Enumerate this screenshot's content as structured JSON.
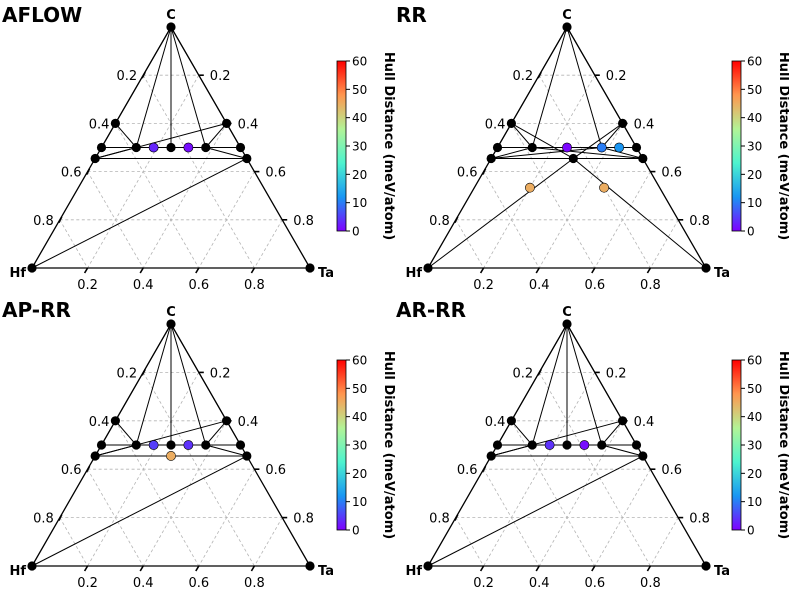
{
  "colorbar": {
    "label": "Hull Distance (meV/atom)",
    "ticks": [
      "0",
      "10",
      "20",
      "30",
      "40",
      "50",
      "60"
    ],
    "range": [
      0,
      60
    ],
    "colormap": [
      "#8000ff",
      "#1996f3",
      "#4df3ce",
      "#b2f396",
      "#ff964f",
      "#ff0000"
    ]
  },
  "stable_color": "#000000",
  "chart_data": [
    {
      "type": "ternary",
      "title": "AFLOW",
      "vertices": {
        "top": "C",
        "left": "Hf",
        "right": "Ta"
      },
      "tick_labels": [
        "0.2",
        "0.4",
        "0.6",
        "0.8"
      ],
      "stable_points": [
        [
          1,
          0,
          0
        ],
        [
          0,
          1,
          0
        ],
        [
          0,
          0,
          1
        ],
        [
          0.5,
          0.5,
          0
        ],
        [
          0.5,
          0,
          0.5
        ],
        [
          0.5,
          0.375,
          0.125
        ],
        [
          0.5,
          0.125,
          0.375
        ],
        [
          0.5,
          0.25,
          0.25
        ],
        [
          0.4545,
          0.5455,
          0
        ],
        [
          0.4545,
          0,
          0.5455
        ],
        [
          0.6,
          0.4,
          0
        ],
        [
          0.6,
          0,
          0.4
        ]
      ],
      "unstable_points": [
        {
          "c": 0.5,
          "hf": 0.3125,
          "ta": 0.1875,
          "hull": 3
        },
        {
          "c": 0.5,
          "hf": 0.1875,
          "ta": 0.3125,
          "hull": 1
        }
      ],
      "tie_lines": [
        [
          [
            1,
            0,
            0
          ],
          [
            0.5,
            0.5,
            0
          ]
        ],
        [
          [
            1,
            0,
            0
          ],
          [
            0.5,
            0,
            0.5
          ]
        ],
        [
          [
            1,
            0,
            0
          ],
          [
            0.5,
            0.375,
            0.125
          ]
        ],
        [
          [
            1,
            0,
            0
          ],
          [
            0.5,
            0.125,
            0.375
          ]
        ],
        [
          [
            1,
            0,
            0
          ],
          [
            0.5,
            0.25,
            0.25
          ]
        ],
        [
          [
            0.5,
            0.5,
            0
          ],
          [
            0.5,
            0,
            0.5
          ]
        ],
        [
          [
            0.5,
            0.375,
            0.125
          ],
          [
            0.6,
            0.4,
            0
          ]
        ],
        [
          [
            0.5,
            0.375,
            0.125
          ],
          [
            0.4545,
            0.5455,
            0
          ]
        ],
        [
          [
            0.5,
            0.125,
            0.375
          ],
          [
            0.6,
            0,
            0.4
          ]
        ],
        [
          [
            0.5,
            0.125,
            0.375
          ],
          [
            0.4545,
            0,
            0.5455
          ]
        ],
        [
          [
            0.4545,
            0.5455,
            0
          ],
          [
            0.4545,
            0,
            0.5455
          ]
        ],
        [
          [
            0.4545,
            0.5455,
            0
          ],
          [
            0.6,
            0,
            0.4
          ]
        ],
        [
          [
            0,
            1,
            0
          ],
          [
            0.4545,
            0,
            0.5455
          ]
        ]
      ]
    },
    {
      "type": "ternary",
      "title": "RR",
      "vertices": {
        "top": "C",
        "left": "Hf",
        "right": "Ta"
      },
      "tick_labels": [
        "0.2",
        "0.4",
        "0.6",
        "0.8"
      ],
      "stable_points": [
        [
          1,
          0,
          0
        ],
        [
          0,
          1,
          0
        ],
        [
          0,
          0,
          1
        ],
        [
          0.5,
          0.5,
          0
        ],
        [
          0.5,
          0,
          0.5
        ],
        [
          0.5,
          0.375,
          0.125
        ],
        [
          0.5,
          0.125,
          0.375
        ],
        [
          0.5,
          0.25,
          0.25
        ],
        [
          0.4545,
          0.5455,
          0
        ],
        [
          0.4545,
          0,
          0.5455
        ],
        [
          0.6,
          0.4,
          0
        ],
        [
          0.6,
          0,
          0.4
        ]
      ],
      "unstable_points": [
        {
          "c": 0.5,
          "hf": 0.25,
          "ta": 0.25,
          "hull": 0.5
        },
        {
          "c": 0.5,
          "hf": 0.125,
          "ta": 0.375,
          "hull": 10
        },
        {
          "c": 0.5,
          "hf": 0.0625,
          "ta": 0.4375,
          "hull": 12
        },
        {
          "c": 0.3333,
          "hf": 0.4667,
          "ta": 0.2,
          "hull": 45
        },
        {
          "c": 0.3333,
          "hf": 0.2,
          "ta": 0.4667,
          "hull": 45
        }
      ],
      "tie_lines": [
        [
          [
            1,
            0,
            0
          ],
          [
            0.4545,
            0.5455,
            0
          ]
        ],
        [
          [
            1,
            0,
            0
          ],
          [
            0.4545,
            0,
            0.5455
          ]
        ],
        [
          [
            1,
            0,
            0
          ],
          [
            0.5,
            0.375,
            0.125
          ]
        ],
        [
          [
            1,
            0,
            0
          ],
          [
            0.5,
            0.125,
            0.375
          ]
        ],
        [
          [
            0.4545,
            0.5455,
            0
          ],
          [
            0.4545,
            0,
            0.5455
          ]
        ],
        [
          [
            0.5,
            0.5,
            0
          ],
          [
            0.5,
            0,
            0.5
          ]
        ],
        [
          [
            0.6,
            0.4,
            0
          ],
          [
            0.5,
            0.375,
            0.125
          ]
        ],
        [
          [
            0.6,
            0,
            0.4
          ],
          [
            0.5,
            0.125,
            0.375
          ]
        ],
        [
          [
            0.4545,
            0.5455,
            0
          ],
          [
            0.5,
            0.375,
            0.125
          ]
        ],
        [
          [
            0.4545,
            0,
            0.5455
          ],
          [
            0.5,
            0.125,
            0.375
          ]
        ],
        [
          [
            0.5,
            0.375,
            0.125
          ],
          [
            0.4545,
            0,
            0.5455
          ]
        ],
        [
          [
            0.5,
            0.125,
            0.375
          ],
          [
            0.4545,
            0.5455,
            0
          ]
        ],
        [
          [
            0.4545,
            0.25,
            0.2955
          ],
          [
            0,
            1,
            0
          ]
        ],
        [
          [
            0.4545,
            0.25,
            0.2955
          ],
          [
            0,
            0,
            1
          ]
        ],
        [
          [
            0.6,
            0.4,
            0
          ],
          [
            0.4545,
            0.25,
            0.2955
          ]
        ],
        [
          [
            0.6,
            0,
            0.4
          ],
          [
            0.4545,
            0.25,
            0.2955
          ]
        ]
      ],
      "extra_stable": [
        [
          0.4545,
          0.25,
          0.2955
        ]
      ]
    },
    {
      "type": "ternary",
      "title": "AP-RR",
      "vertices": {
        "top": "C",
        "left": "Hf",
        "right": "Ta"
      },
      "tick_labels": [
        "0.2",
        "0.4",
        "0.6",
        "0.8"
      ],
      "stable_points": [
        [
          1,
          0,
          0
        ],
        [
          0,
          1,
          0
        ],
        [
          0,
          0,
          1
        ],
        [
          0.5,
          0.5,
          0
        ],
        [
          0.5,
          0,
          0.5
        ],
        [
          0.5,
          0.375,
          0.125
        ],
        [
          0.5,
          0.125,
          0.375
        ],
        [
          0.5,
          0.25,
          0.25
        ],
        [
          0.4545,
          0.5455,
          0
        ],
        [
          0.4545,
          0,
          0.5455
        ],
        [
          0.6,
          0.4,
          0
        ],
        [
          0.6,
          0,
          0.4
        ]
      ],
      "unstable_points": [
        {
          "c": 0.5,
          "hf": 0.3125,
          "ta": 0.1875,
          "hull": 5
        },
        {
          "c": 0.5,
          "hf": 0.1875,
          "ta": 0.3125,
          "hull": 4
        },
        {
          "c": 0.4545,
          "hf": 0.2727,
          "ta": 0.2727,
          "hull": 45
        }
      ],
      "tie_lines": [
        [
          [
            1,
            0,
            0
          ],
          [
            0.5,
            0.5,
            0
          ]
        ],
        [
          [
            1,
            0,
            0
          ],
          [
            0.5,
            0,
            0.5
          ]
        ],
        [
          [
            1,
            0,
            0
          ],
          [
            0.5,
            0.375,
            0.125
          ]
        ],
        [
          [
            1,
            0,
            0
          ],
          [
            0.5,
            0.125,
            0.375
          ]
        ],
        [
          [
            1,
            0,
            0
          ],
          [
            0.5,
            0.25,
            0.25
          ]
        ],
        [
          [
            0.5,
            0.5,
            0
          ],
          [
            0.5,
            0,
            0.5
          ]
        ],
        [
          [
            0.5,
            0.375,
            0.125
          ],
          [
            0.6,
            0.4,
            0
          ]
        ],
        [
          [
            0.5,
            0.375,
            0.125
          ],
          [
            0.4545,
            0.5455,
            0
          ]
        ],
        [
          [
            0.5,
            0.125,
            0.375
          ],
          [
            0.6,
            0,
            0.4
          ]
        ],
        [
          [
            0.5,
            0.125,
            0.375
          ],
          [
            0.4545,
            0,
            0.5455
          ]
        ],
        [
          [
            0.4545,
            0.5455,
            0
          ],
          [
            0.4545,
            0,
            0.5455
          ]
        ],
        [
          [
            0.4545,
            0.5455,
            0
          ],
          [
            0.6,
            0,
            0.4
          ]
        ],
        [
          [
            0,
            1,
            0
          ],
          [
            0.4545,
            0,
            0.5455
          ]
        ]
      ]
    },
    {
      "type": "ternary",
      "title": "AR-RR",
      "vertices": {
        "top": "C",
        "left": "Hf",
        "right": "Ta"
      },
      "tick_labels": [
        "0.2",
        "0.4",
        "0.6",
        "0.8"
      ],
      "stable_points": [
        [
          1,
          0,
          0
        ],
        [
          0,
          1,
          0
        ],
        [
          0,
          0,
          1
        ],
        [
          0.5,
          0.5,
          0
        ],
        [
          0.5,
          0,
          0.5
        ],
        [
          0.5,
          0.375,
          0.125
        ],
        [
          0.5,
          0.125,
          0.375
        ],
        [
          0.5,
          0.25,
          0.25
        ],
        [
          0.4545,
          0.5455,
          0
        ],
        [
          0.4545,
          0,
          0.5455
        ],
        [
          0.6,
          0.4,
          0
        ],
        [
          0.6,
          0,
          0.4
        ]
      ],
      "unstable_points": [
        {
          "c": 0.5,
          "hf": 0.3125,
          "ta": 0.1875,
          "hull": 4
        },
        {
          "c": 0.5,
          "hf": 0.1875,
          "ta": 0.3125,
          "hull": 1
        }
      ],
      "tie_lines": [
        [
          [
            1,
            0,
            0
          ],
          [
            0.5,
            0.5,
            0
          ]
        ],
        [
          [
            1,
            0,
            0
          ],
          [
            0.5,
            0,
            0.5
          ]
        ],
        [
          [
            1,
            0,
            0
          ],
          [
            0.5,
            0.375,
            0.125
          ]
        ],
        [
          [
            1,
            0,
            0
          ],
          [
            0.5,
            0.125,
            0.375
          ]
        ],
        [
          [
            1,
            0,
            0
          ],
          [
            0.5,
            0.25,
            0.25
          ]
        ],
        [
          [
            0.5,
            0.5,
            0
          ],
          [
            0.5,
            0,
            0.5
          ]
        ],
        [
          [
            0.5,
            0.375,
            0.125
          ],
          [
            0.6,
            0.4,
            0
          ]
        ],
        [
          [
            0.5,
            0.375,
            0.125
          ],
          [
            0.4545,
            0.5455,
            0
          ]
        ],
        [
          [
            0.5,
            0.125,
            0.375
          ],
          [
            0.6,
            0,
            0.4
          ]
        ],
        [
          [
            0.5,
            0.125,
            0.375
          ],
          [
            0.4545,
            0,
            0.5455
          ]
        ],
        [
          [
            0.4545,
            0.5455,
            0
          ],
          [
            0.4545,
            0,
            0.5455
          ]
        ],
        [
          [
            0.4545,
            0.5455,
            0
          ],
          [
            0.6,
            0,
            0.4
          ]
        ],
        [
          [
            0,
            1,
            0
          ],
          [
            0.4545,
            0,
            0.5455
          ]
        ]
      ]
    }
  ]
}
